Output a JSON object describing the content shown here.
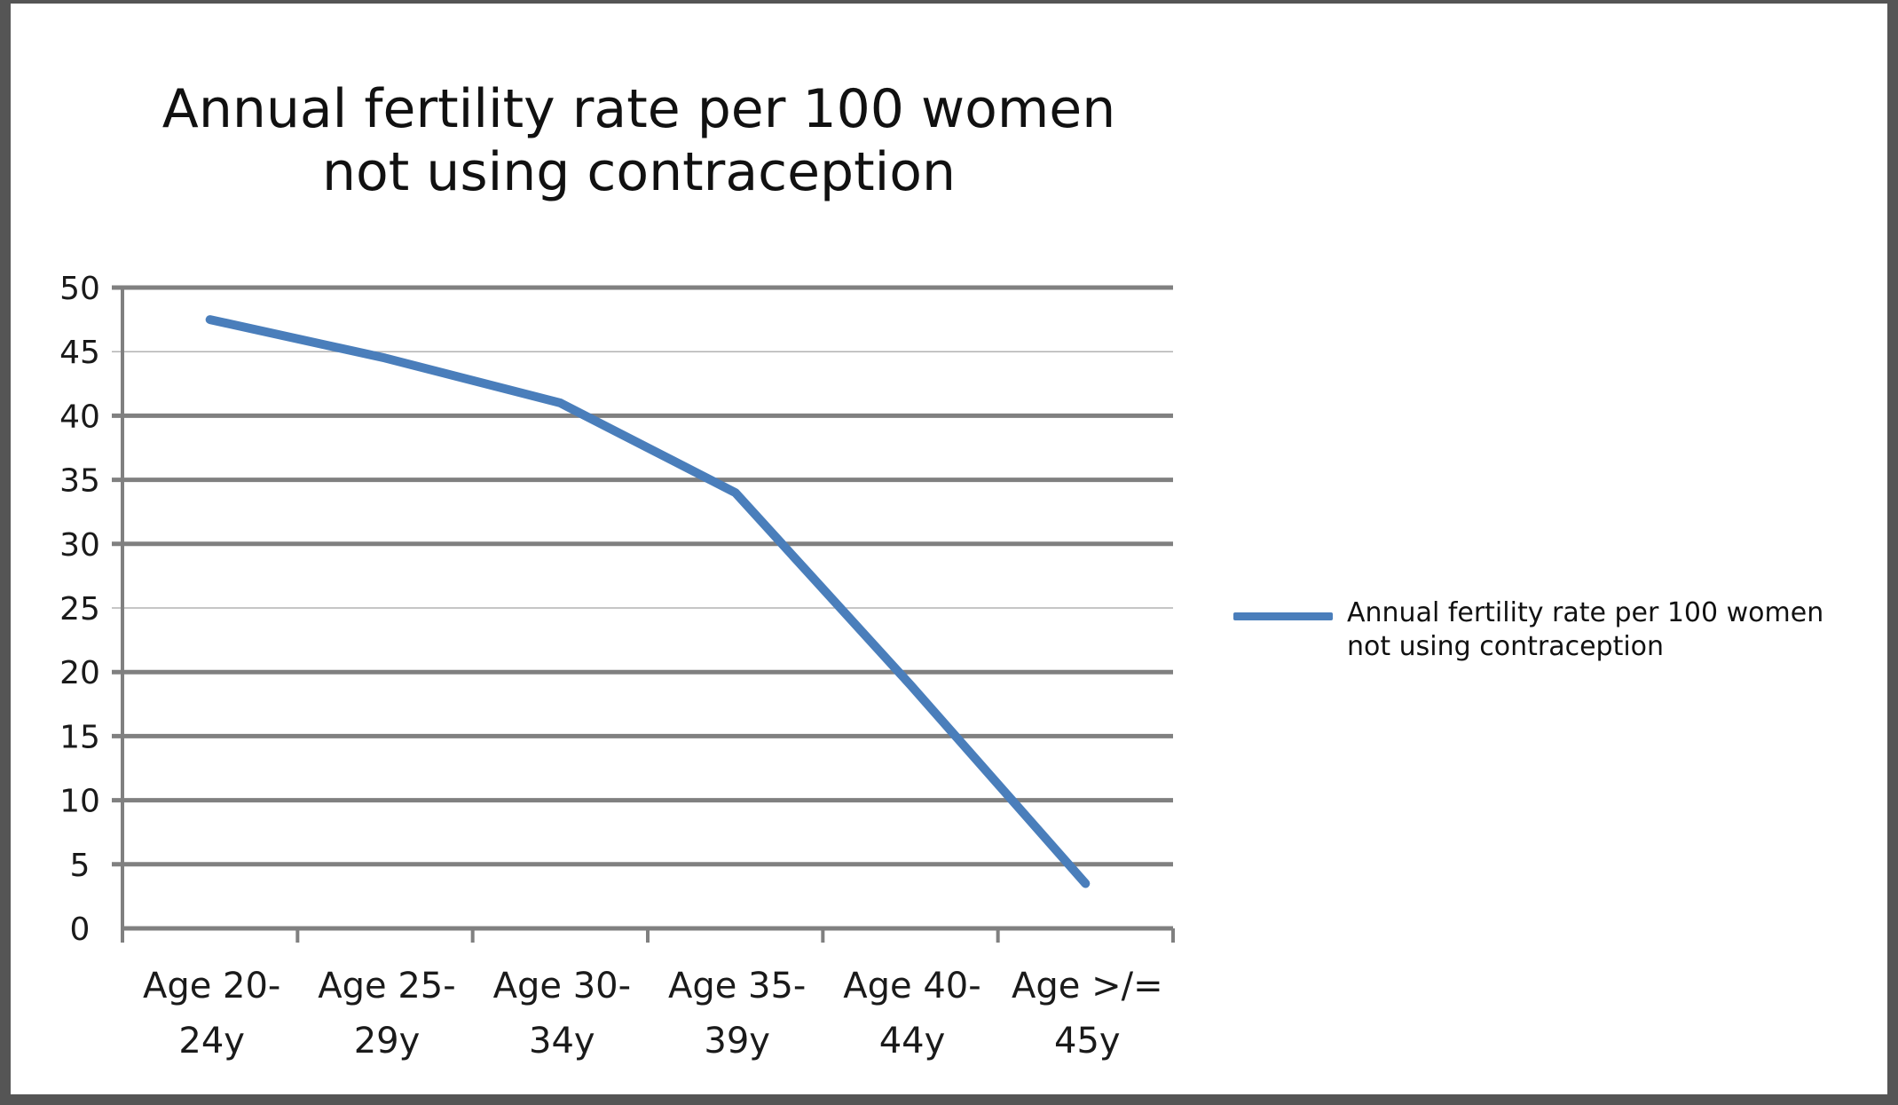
{
  "chart_data": {
    "type": "line",
    "title_lines": [
      "Annual fertility rate per 100 women",
      "not using contraception"
    ],
    "categories": [
      [
        "Age 20-",
        "24y"
      ],
      [
        "Age 25-",
        "29y"
      ],
      [
        "Age 30-",
        "34y"
      ],
      [
        "Age 35-",
        "39y"
      ],
      [
        "Age 40-",
        "44y"
      ],
      [
        "Age >/=",
        "45y"
      ]
    ],
    "series": [
      {
        "name": "Annual fertility rate per 100 women not using contraception",
        "values": [
          47.5,
          44.5,
          41,
          34,
          19,
          3.5
        ],
        "color": "#4a7ebb"
      }
    ],
    "ylim": [
      0,
      50
    ],
    "yticks": [
      0,
      5,
      10,
      15,
      20,
      25,
      30,
      35,
      40,
      45,
      50
    ],
    "grid": true,
    "legend_position": "right"
  },
  "colors": {
    "frame": "#555555",
    "grid": "#808080",
    "axis": "#808080",
    "series": "#4a7ebb"
  }
}
